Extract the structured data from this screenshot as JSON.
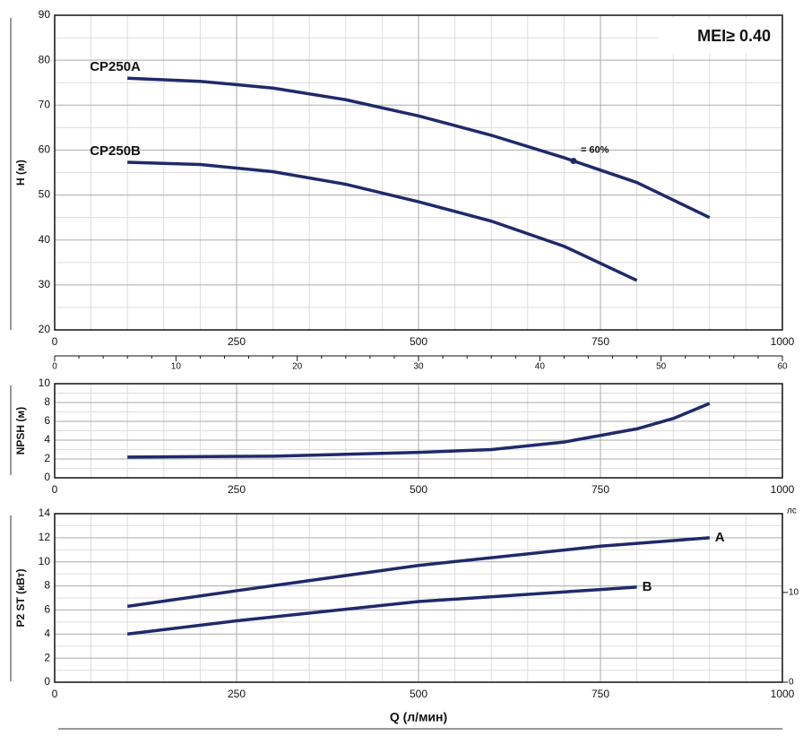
{
  "chart_data": [
    {
      "type": "line",
      "ylabel": "H (м)",
      "badge": "MEI≥ 0.40",
      "xlim": [
        0,
        1000
      ],
      "xticks": [
        0,
        250,
        500,
        750,
        1000
      ],
      "x2lim": [
        0,
        60
      ],
      "x2ticks": [
        0,
        10,
        20,
        30,
        40,
        50,
        60
      ],
      "ylim": [
        20,
        90
      ],
      "yticks": [
        20,
        30,
        40,
        50,
        60,
        70,
        80,
        90
      ],
      "grid": true,
      "series": [
        {
          "name": "CP250A",
          "color": "#1f2a6b",
          "x": [
            100,
            200,
            300,
            400,
            500,
            600,
            700,
            800,
            900
          ],
          "values": [
            76,
            75.3,
            73.8,
            71.2,
            67.6,
            63.3,
            58.3,
            52.8,
            45
          ]
        },
        {
          "name": "CP250B",
          "color": "#1f2a6b",
          "x": [
            100,
            200,
            300,
            400,
            500,
            600,
            700,
            800
          ],
          "values": [
            57.3,
            56.8,
            55.2,
            52.4,
            48.5,
            44.2,
            38.6,
            31
          ]
        }
      ],
      "annotations": [
        {
          "text": "= 60%",
          "x": 713,
          "y": 57.6
        }
      ]
    },
    {
      "type": "line",
      "ylabel": "NPSH (м)",
      "xlim": [
        0,
        1000
      ],
      "xticks": [
        0,
        250,
        500,
        750,
        1000
      ],
      "ylim": [
        0,
        10
      ],
      "yticks": [
        0,
        2,
        4,
        6,
        8,
        10
      ],
      "grid": true,
      "series": [
        {
          "name": null,
          "color": "#1f2a6b",
          "x": [
            100,
            300,
            500,
            600,
            700,
            800,
            850,
            900
          ],
          "values": [
            2.2,
            2.3,
            2.7,
            3.0,
            3.8,
            5.2,
            6.3,
            7.9
          ]
        }
      ]
    },
    {
      "type": "line",
      "ylabel": "P2 ST (кВт)",
      "xlabel": "Q (л/мин)",
      "y2label": "лс",
      "xlim": [
        0,
        1000
      ],
      "xticks": [
        0,
        250,
        500,
        750,
        1000
      ],
      "ylim": [
        0,
        14
      ],
      "yticks": [
        0,
        2,
        4,
        6,
        8,
        10,
        12,
        14
      ],
      "grid": true,
      "y2lim": [
        0,
        18.77
      ],
      "y2ticks": [
        0,
        10
      ],
      "series": [
        {
          "name": "A",
          "color": "#1f2a6b",
          "x": [
            100,
            250,
            500,
            750,
            900
          ],
          "values": [
            6.3,
            7.6,
            9.7,
            11.3,
            12.0
          ]
        },
        {
          "name": "B",
          "color": "#1f2a6b",
          "x": [
            100,
            250,
            500,
            750,
            800
          ],
          "values": [
            4.0,
            5.1,
            6.7,
            7.7,
            7.9
          ]
        }
      ]
    }
  ]
}
